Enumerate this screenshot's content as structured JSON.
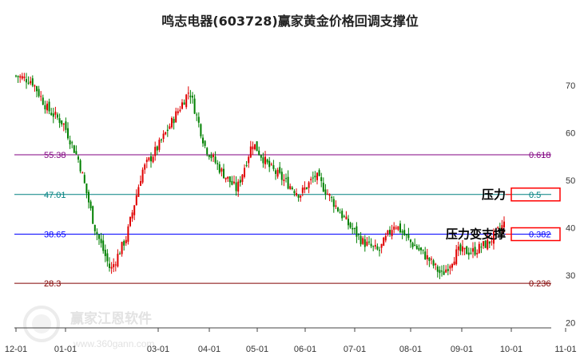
{
  "chart_data": {
    "type": "candlestick",
    "title": "鸣志电器(603728)赢家黄金价格回调支撑位",
    "y_axis": {
      "position": "right",
      "ticks": [
        70,
        60,
        50,
        40,
        30,
        20
      ],
      "range": [
        20,
        75
      ]
    },
    "x_axis": {
      "ticks": [
        "12-01",
        "01-01",
        "03-01",
        "04-01",
        "05-01",
        "06-01",
        "07-01",
        "08-01",
        "09-01",
        "10-01",
        "11-01"
      ]
    },
    "levels": [
      {
        "price": 55.38,
        "price_label": "55.38",
        "ratio": "0.618",
        "color": "#800080"
      },
      {
        "price": 47.01,
        "price_label": "47.01",
        "ratio": "0.5",
        "color": "#008080",
        "annotation": "压力"
      },
      {
        "price": 38.65,
        "price_label": "38.65",
        "ratio": "0.382",
        "color": "#0000ff",
        "annotation": "压力变支撑"
      },
      {
        "price": 28.3,
        "price_label": "28.3",
        "ratio": "0.236",
        "color": "#800000"
      }
    ],
    "series": [
      {
        "label": "12-01",
        "close": 72
      },
      {
        "label": "12-15",
        "close": 71
      },
      {
        "label": "01-01",
        "close": 65
      },
      {
        "label": "01-15",
        "close": 62
      },
      {
        "label": "02-01",
        "close": 54
      },
      {
        "label": "02-10",
        "close": 40
      },
      {
        "label": "02-18",
        "close": 31
      },
      {
        "label": "02-25",
        "close": 38
      },
      {
        "label": "03-01",
        "close": 52
      },
      {
        "label": "03-10",
        "close": 57
      },
      {
        "label": "03-20",
        "close": 63
      },
      {
        "label": "03-25",
        "close": 69
      },
      {
        "label": "04-01",
        "close": 57
      },
      {
        "label": "04-15",
        "close": 52
      },
      {
        "label": "04-25",
        "close": 48
      },
      {
        "label": "05-01",
        "close": 58
      },
      {
        "label": "05-10",
        "close": 53
      },
      {
        "label": "05-20",
        "close": 50
      },
      {
        "label": "06-01",
        "close": 47
      },
      {
        "label": "06-10",
        "close": 51
      },
      {
        "label": "06-20",
        "close": 46
      },
      {
        "label": "07-01",
        "close": 41
      },
      {
        "label": "07-15",
        "close": 37
      },
      {
        "label": "07-25",
        "close": 35
      },
      {
        "label": "08-01",
        "close": 41
      },
      {
        "label": "08-10",
        "close": 37
      },
      {
        "label": "08-20",
        "close": 34
      },
      {
        "label": "08-28",
        "close": 30
      },
      {
        "label": "09-01",
        "close": 35
      },
      {
        "label": "09-15",
        "close": 35
      },
      {
        "label": "09-25",
        "close": 37
      },
      {
        "label": "10-01",
        "close": 41
      }
    ],
    "grid": false,
    "up_color": "#e00000",
    "down_color": "#008000"
  },
  "watermark": {
    "brand": "赢家江恩软件",
    "url": "www.360gann.com"
  }
}
